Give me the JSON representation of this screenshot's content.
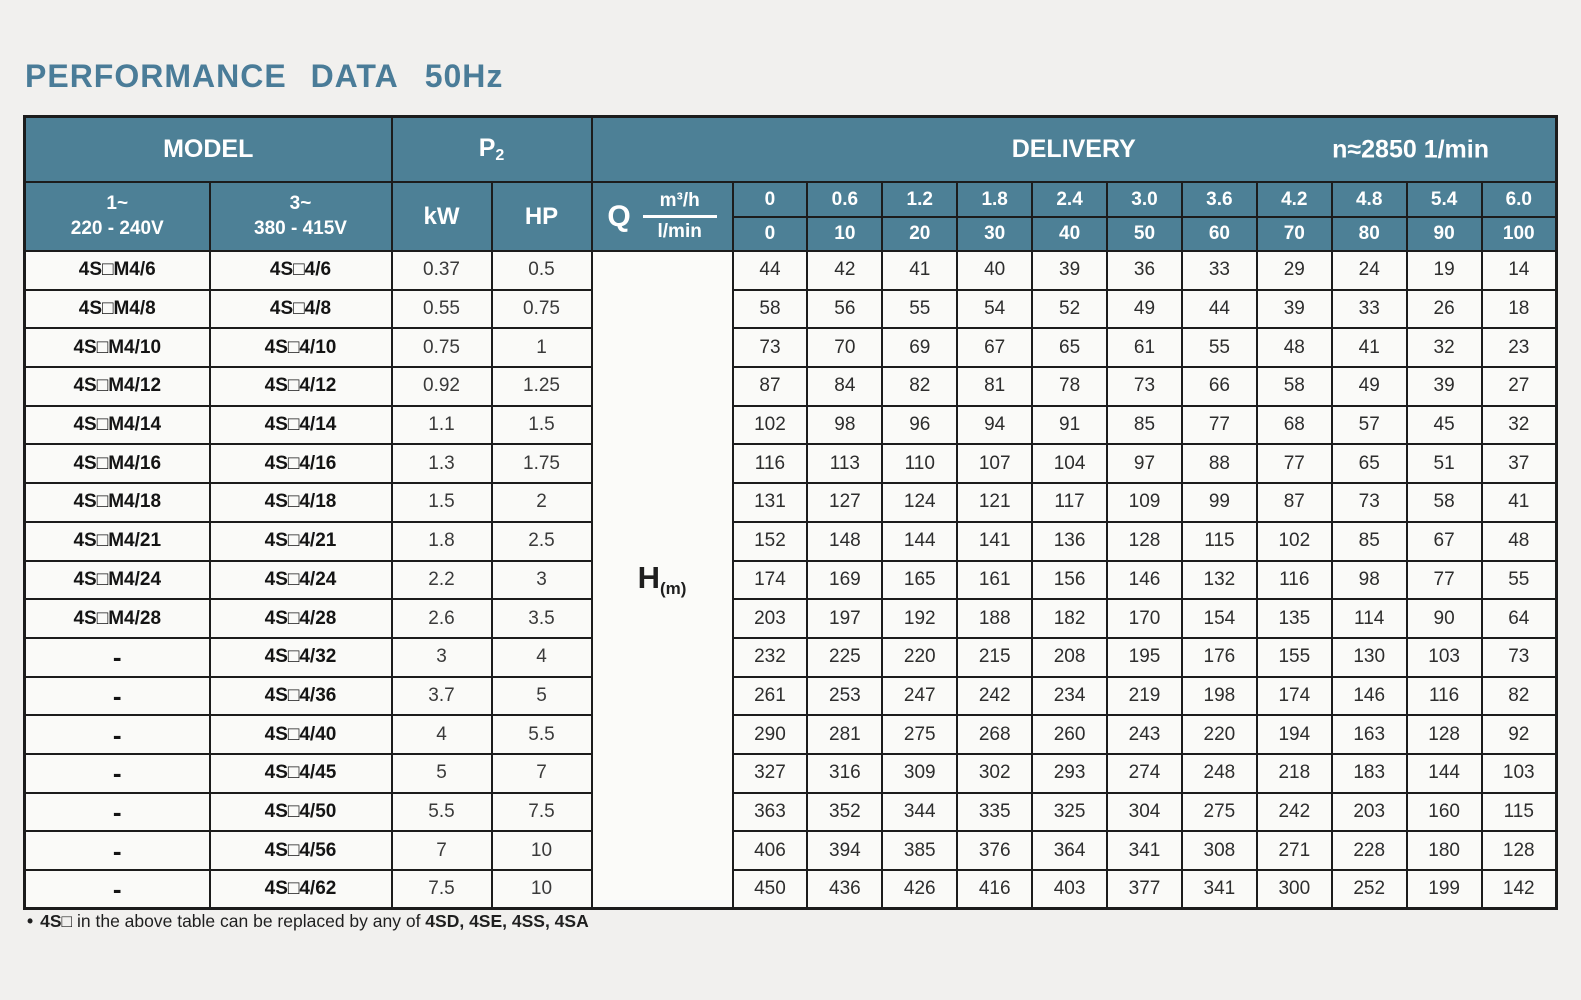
{
  "page": {
    "title": "PERFORMANCE DATA",
    "frequency": "50Hz",
    "colors": {
      "header_bg": "#4d8096",
      "title_text": "#4a7c98",
      "border": "#1c1c1c",
      "body_bg": "#fafaf8"
    }
  },
  "table": {
    "header": {
      "model_label": "MODEL",
      "p2_base": "P",
      "p2_sub": "2",
      "delivery_label": "DELIVERY",
      "speed_label": "n≈2850 1/min",
      "phase1_line1": "1~",
      "phase1_line2": "220 - 240V",
      "phase3_line1": "3~",
      "phase3_line2": "380 - 415V",
      "kw_label": "kW",
      "hp_label": "HP",
      "q_label": "Q",
      "flow_unit_top": "m³/h",
      "flow_unit_bottom": "l/min",
      "head_unit_base": "H",
      "head_unit_sub": "(m)",
      "flow_m3h": [
        "0",
        "0.6",
        "1.2",
        "1.8",
        "2.4",
        "3.0",
        "3.6",
        "4.2",
        "4.8",
        "5.4",
        "6.0"
      ],
      "flow_lmin": [
        "0",
        "10",
        "20",
        "30",
        "40",
        "50",
        "60",
        "70",
        "80",
        "90",
        "100"
      ]
    },
    "rows": [
      {
        "model_1ph": "4S□M4/6",
        "model_3ph": "4S□4/6",
        "kw": "0.37",
        "hp": "0.5",
        "heads": [
          44,
          42,
          41,
          40,
          39,
          36,
          33,
          29,
          24,
          19,
          14
        ]
      },
      {
        "model_1ph": "4S□M4/8",
        "model_3ph": "4S□4/8",
        "kw": "0.55",
        "hp": "0.75",
        "heads": [
          58,
          56,
          55,
          54,
          52,
          49,
          44,
          39,
          33,
          26,
          18
        ]
      },
      {
        "model_1ph": "4S□M4/10",
        "model_3ph": "4S□4/10",
        "kw": "0.75",
        "hp": "1",
        "heads": [
          73,
          70,
          69,
          67,
          65,
          61,
          55,
          48,
          41,
          32,
          23
        ]
      },
      {
        "model_1ph": "4S□M4/12",
        "model_3ph": "4S□4/12",
        "kw": "0.92",
        "hp": "1.25",
        "heads": [
          87,
          84,
          82,
          81,
          78,
          73,
          66,
          58,
          49,
          39,
          27
        ]
      },
      {
        "model_1ph": "4S□M4/14",
        "model_3ph": "4S□4/14",
        "kw": "1.1",
        "hp": "1.5",
        "heads": [
          102,
          98,
          96,
          94,
          91,
          85,
          77,
          68,
          57,
          45,
          32
        ]
      },
      {
        "model_1ph": "4S□M4/16",
        "model_3ph": "4S□4/16",
        "kw": "1.3",
        "hp": "1.75",
        "heads": [
          116,
          113,
          110,
          107,
          104,
          97,
          88,
          77,
          65,
          51,
          37
        ]
      },
      {
        "model_1ph": "4S□M4/18",
        "model_3ph": "4S□4/18",
        "kw": "1.5",
        "hp": "2",
        "heads": [
          131,
          127,
          124,
          121,
          117,
          109,
          99,
          87,
          73,
          58,
          41
        ]
      },
      {
        "model_1ph": "4S□M4/21",
        "model_3ph": "4S□4/21",
        "kw": "1.8",
        "hp": "2.5",
        "heads": [
          152,
          148,
          144,
          141,
          136,
          128,
          115,
          102,
          85,
          67,
          48
        ]
      },
      {
        "model_1ph": "4S□M4/24",
        "model_3ph": "4S□4/24",
        "kw": "2.2",
        "hp": "3",
        "heads": [
          174,
          169,
          165,
          161,
          156,
          146,
          132,
          116,
          98,
          77,
          55
        ]
      },
      {
        "model_1ph": "4S□M4/28",
        "model_3ph": "4S□4/28",
        "kw": "2.6",
        "hp": "3.5",
        "heads": [
          203,
          197,
          192,
          188,
          182,
          170,
          154,
          135,
          114,
          90,
          64
        ]
      },
      {
        "model_1ph": "-",
        "model_3ph": "4S□4/32",
        "kw": "3",
        "hp": "4",
        "heads": [
          232,
          225,
          220,
          215,
          208,
          195,
          176,
          155,
          130,
          103,
          73
        ]
      },
      {
        "model_1ph": "-",
        "model_3ph": "4S□4/36",
        "kw": "3.7",
        "hp": "5",
        "heads": [
          261,
          253,
          247,
          242,
          234,
          219,
          198,
          174,
          146,
          116,
          82
        ]
      },
      {
        "model_1ph": "-",
        "model_3ph": "4S□4/40",
        "kw": "4",
        "hp": "5.5",
        "heads": [
          290,
          281,
          275,
          268,
          260,
          243,
          220,
          194,
          163,
          128,
          92
        ]
      },
      {
        "model_1ph": "-",
        "model_3ph": "4S□4/45",
        "kw": "5",
        "hp": "7",
        "heads": [
          327,
          316,
          309,
          302,
          293,
          274,
          248,
          218,
          183,
          144,
          103
        ]
      },
      {
        "model_1ph": "-",
        "model_3ph": "4S□4/50",
        "kw": "5.5",
        "hp": "7.5",
        "heads": [
          363,
          352,
          344,
          335,
          325,
          304,
          275,
          242,
          203,
          160,
          115
        ]
      },
      {
        "model_1ph": "-",
        "model_3ph": "4S□4/56",
        "kw": "7",
        "hp": "10",
        "heads": [
          406,
          394,
          385,
          376,
          364,
          341,
          308,
          271,
          228,
          180,
          128
        ]
      },
      {
        "model_1ph": "-",
        "model_3ph": "4S□4/62",
        "kw": "7.5",
        "hp": "10",
        "heads": [
          450,
          436,
          426,
          416,
          403,
          377,
          341,
          300,
          252,
          199,
          142
        ]
      }
    ]
  },
  "footnote": {
    "bullet": "•",
    "model_prefix": "4S□",
    "text": " in the above table can be replaced by any of ",
    "variants": "4SD, 4SE, 4SS, 4SA"
  }
}
